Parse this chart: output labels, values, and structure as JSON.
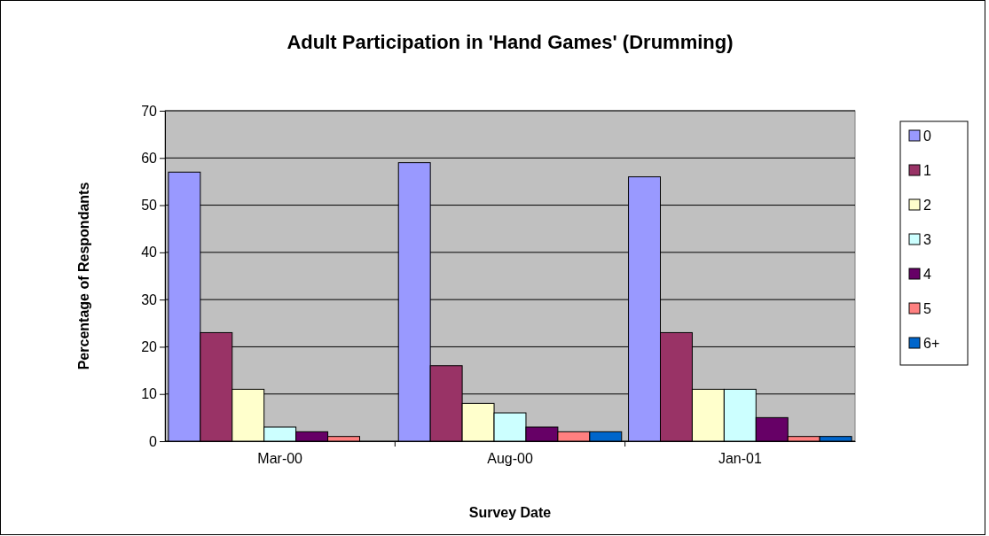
{
  "chart_data": {
    "type": "bar",
    "title": "Adult Participation in 'Hand Games' (Drumming)",
    "xlabel": "Survey Date",
    "ylabel": "Percentage of Respondants",
    "categories": [
      "Mar-00",
      "Aug-00",
      "Jan-01"
    ],
    "series": [
      {
        "name": "0",
        "color": "#9999ff",
        "values": [
          57,
          59,
          56
        ]
      },
      {
        "name": "1",
        "color": "#993366",
        "values": [
          23,
          16,
          23
        ]
      },
      {
        "name": "2",
        "color": "#ffffcc",
        "values": [
          11,
          8,
          11
        ]
      },
      {
        "name": "3",
        "color": "#ccffff",
        "values": [
          3,
          6,
          11
        ]
      },
      {
        "name": "4",
        "color": "#660066",
        "values": [
          2,
          3,
          5
        ]
      },
      {
        "name": "5",
        "color": "#ff8080",
        "values": [
          1,
          2,
          1
        ]
      },
      {
        "name": "6+",
        "color": "#0066cc",
        "values": [
          0,
          2,
          1
        ]
      }
    ],
    "ylim": [
      0,
      70
    ],
    "yticks": [
      0,
      10,
      20,
      30,
      40,
      50,
      60,
      70
    ],
    "grid": "y",
    "legend": "right"
  }
}
